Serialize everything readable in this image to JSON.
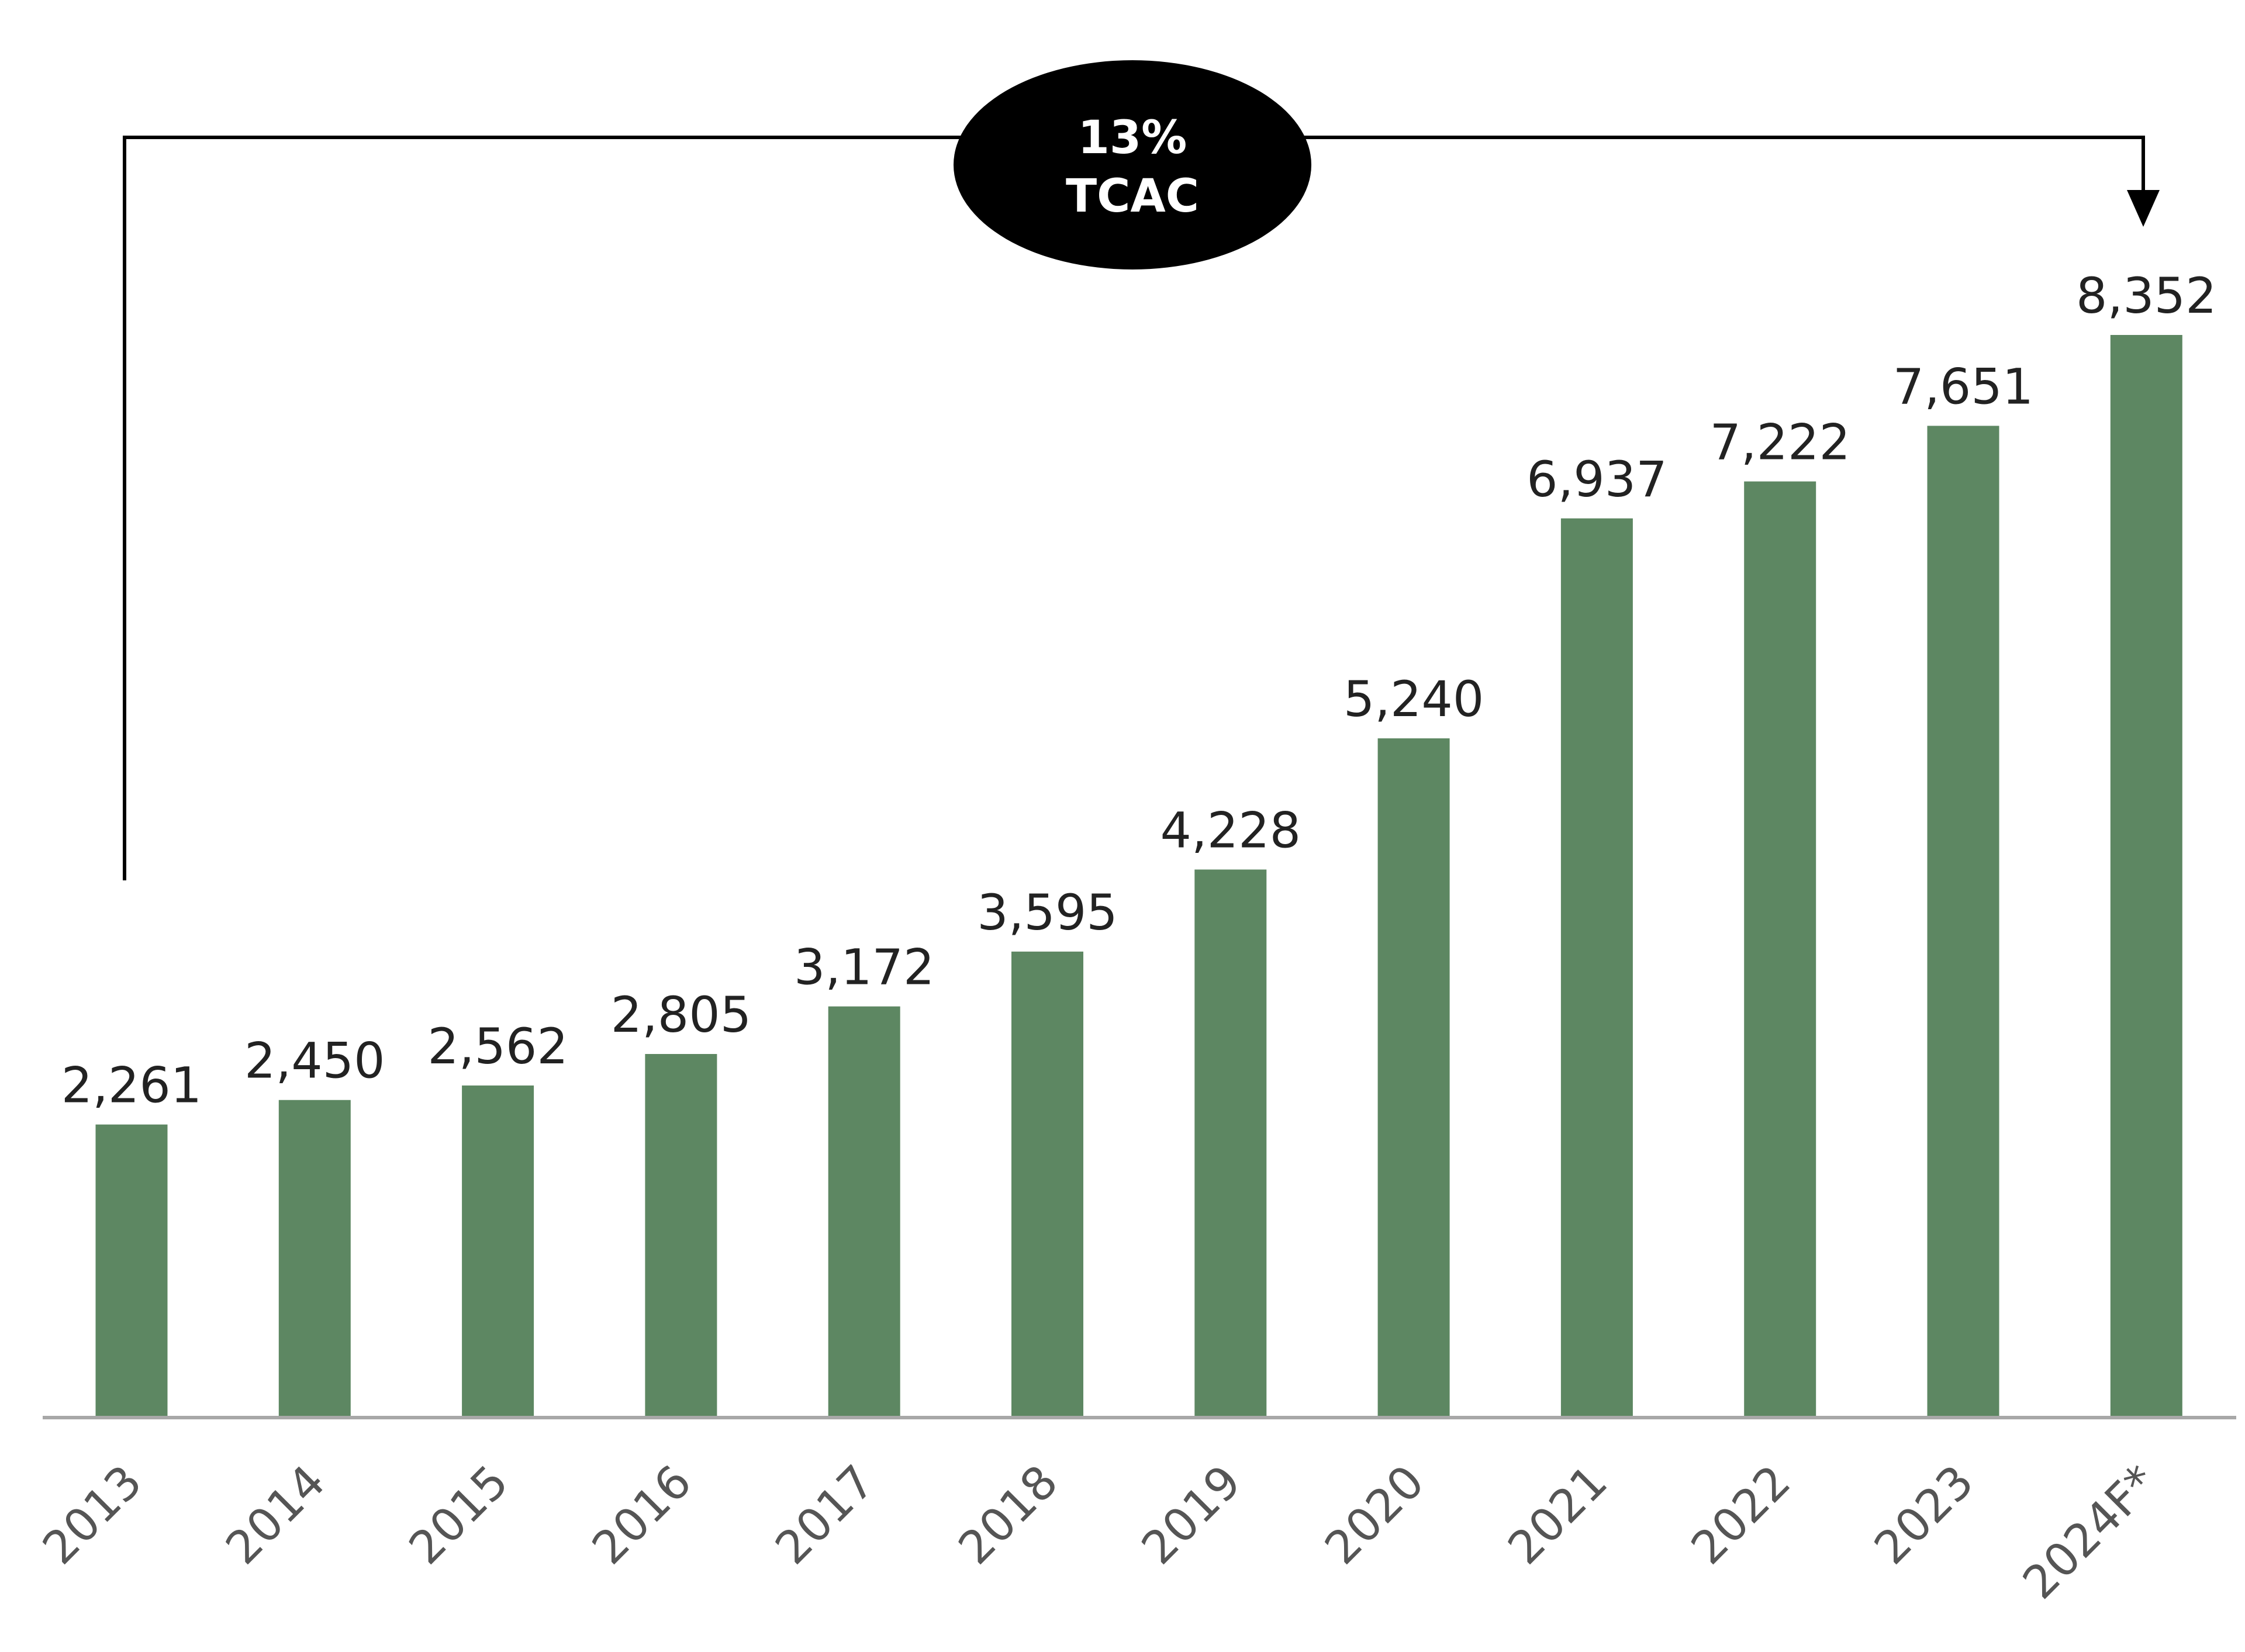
{
  "chart_data": {
    "type": "bar",
    "title": "",
    "xlabel": "",
    "ylabel": "",
    "categories": [
      "2013",
      "2014",
      "2015",
      "2016",
      "2017",
      "2018",
      "2019",
      "2020",
      "2021",
      "2022",
      "2023",
      "2024F*"
    ],
    "values": [
      2261,
      2450,
      2562,
      2805,
      3172,
      3595,
      4228,
      5240,
      6937,
      7222,
      7651,
      8352
    ],
    "value_labels": [
      "2,261",
      "2,450",
      "2,562",
      "2,805",
      "3,172",
      "3,595",
      "4,228",
      "5,240",
      "6,937",
      "7,222",
      "7,651",
      "8,352"
    ],
    "ylim": [
      0,
      8352
    ],
    "grid": false,
    "annotation": {
      "line1": "13%",
      "line2": "TCAC",
      "from": "2013",
      "to": "2024F*"
    },
    "colors": {
      "bar": "#5d8762",
      "axis": "#a8a8a8",
      "label": "#222222",
      "tick": "#555555",
      "badge": "#000000"
    }
  }
}
